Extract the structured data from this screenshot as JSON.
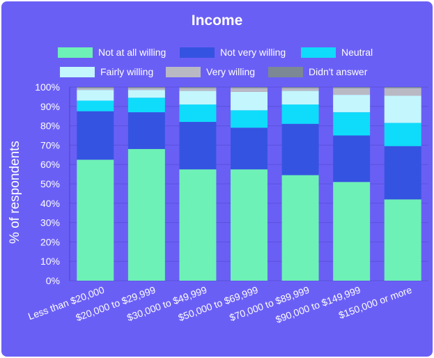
{
  "chart_data": {
    "type": "bar",
    "stacked": true,
    "title": "Income",
    "ylabel": "% of respondents",
    "xlabel": "",
    "ylim": [
      0,
      100
    ],
    "yticks": [
      "0%",
      "10%",
      "20%",
      "30%",
      "40%",
      "50%",
      "60%",
      "70%",
      "80%",
      "90%",
      "100%"
    ],
    "grid": true,
    "legend_position": "top",
    "categories": [
      "Less than $20,000",
      "$20,000 to $29,999",
      "$30,000 to $49,999",
      "$50,000 to $69,999",
      "$70,000 to $89,999",
      "$90,000 to $149,999",
      "$150,000 or more"
    ],
    "series": [
      {
        "name": "Not at all willing",
        "color": "#6ef1b6",
        "values": [
          62.5,
          68.0,
          57.5,
          57.5,
          54.5,
          51.0,
          42.0
        ]
      },
      {
        "name": "Not very willing",
        "color": "#3553e1",
        "values": [
          25.0,
          19.0,
          24.5,
          21.5,
          26.5,
          24.0,
          27.5
        ]
      },
      {
        "name": "Neutral",
        "color": "#0fdcfa",
        "values": [
          5.5,
          7.5,
          9.0,
          9.0,
          10.0,
          12.0,
          12.0
        ]
      },
      {
        "name": "Fairly willing",
        "color": "#c3f7fd",
        "values": [
          5.5,
          4.0,
          7.0,
          9.5,
          7.0,
          9.0,
          14.0
        ]
      },
      {
        "name": "Very willing",
        "color": "#b9b9c4",
        "values": [
          1.0,
          1.0,
          1.5,
          2.0,
          1.5,
          3.5,
          4.0
        ]
      },
      {
        "name": "Didn't answer",
        "color": "#7c8894",
        "values": [
          0.5,
          0.5,
          0.5,
          0.5,
          0.5,
          0.5,
          0.5
        ]
      }
    ]
  }
}
